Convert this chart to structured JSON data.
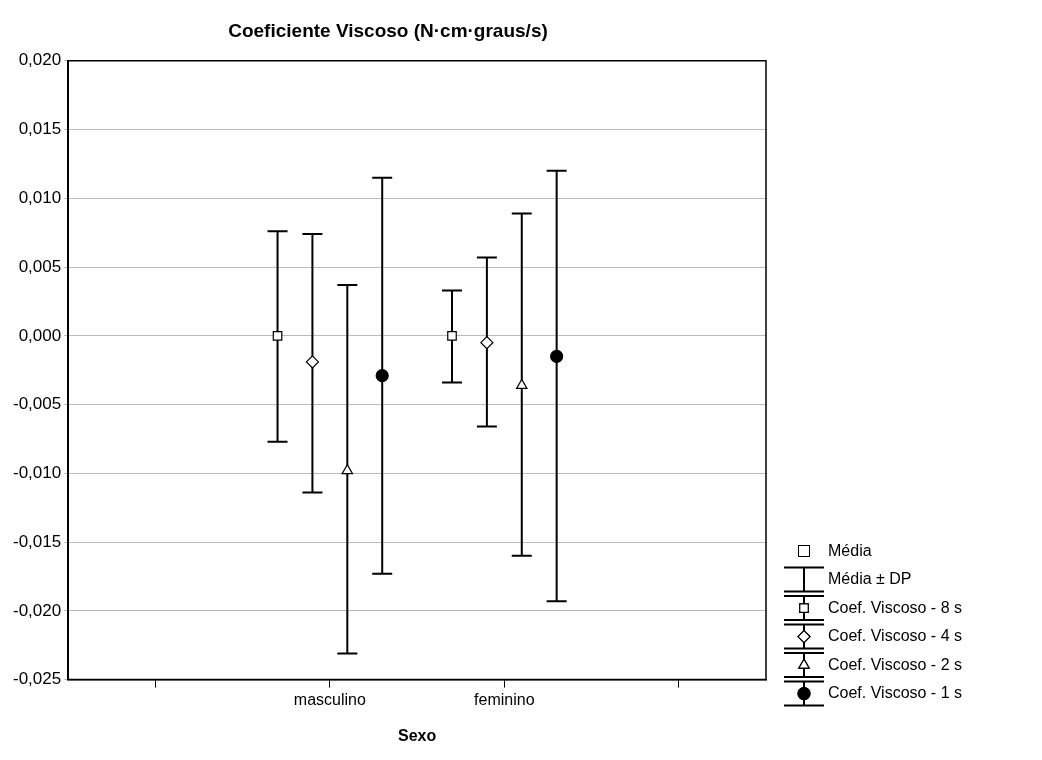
{
  "chart_data": {
    "type": "scatter",
    "title": "Coeficiente Viscoso (N·cm·graus/s)",
    "xlabel": "Sexo",
    "categories": [
      null,
      "masculino",
      "feminino",
      null
    ],
    "ylim": [
      -0.025,
      0.02
    ],
    "yticks": [
      {
        "value": -0.025,
        "label": "-0,025"
      },
      {
        "value": -0.02,
        "label": "-0,020"
      },
      {
        "value": -0.015,
        "label": "-0,015"
      },
      {
        "value": -0.01,
        "label": "-0,010"
      },
      {
        "value": -0.005,
        "label": "-0,005"
      },
      {
        "value": 0,
        "label": "0,000"
      },
      {
        "value": 0.005,
        "label": "0,005"
      },
      {
        "value": 0.01,
        "label": "0,010"
      },
      {
        "value": 0.015,
        "label": "0,015"
      },
      {
        "value": 0.02,
        "label": "0,020"
      }
    ],
    "grid": "y",
    "legend": "bottom right",
    "legend_title": "Média ± DP",
    "annotations": [
      "Média"
    ],
    "series": [
      {
        "name": "Coef. Viscoso - 8 s",
        "color": "#ffffff",
        "marker": "square",
        "values": [
          null,
          0.0,
          0.0,
          null
        ],
        "errors": [
          null,
          [
            -0.0077,
            0.0076
          ],
          [
            -0.0034,
            0.0033
          ],
          null
        ]
      },
      {
        "name": "Coef. Viscoso - 4 s",
        "color": "#ffffff",
        "marker": "diamond",
        "values": [
          null,
          -0.0019,
          -0.0005,
          null
        ],
        "errors": [
          null,
          [
            -0.0114,
            0.0074
          ],
          [
            -0.0066,
            0.0057
          ],
          null
        ]
      },
      {
        "name": "Coef. Viscoso - 2 s",
        "color": "#ffffff",
        "marker": "triangle",
        "values": [
          null,
          -0.0098,
          -0.0036,
          null
        ],
        "errors": [
          null,
          [
            -0.0231,
            0.0037
          ],
          [
            -0.016,
            0.0089
          ],
          null
        ]
      },
      {
        "name": "Coef. Viscoso - 1 s",
        "color": "#000000",
        "marker": "circle",
        "values": [
          null,
          -0.0029,
          -0.0015,
          null
        ],
        "errors": [
          null,
          [
            -0.0173,
            0.0115
          ],
          [
            -0.0193,
            0.012
          ],
          null
        ]
      }
    ]
  }
}
